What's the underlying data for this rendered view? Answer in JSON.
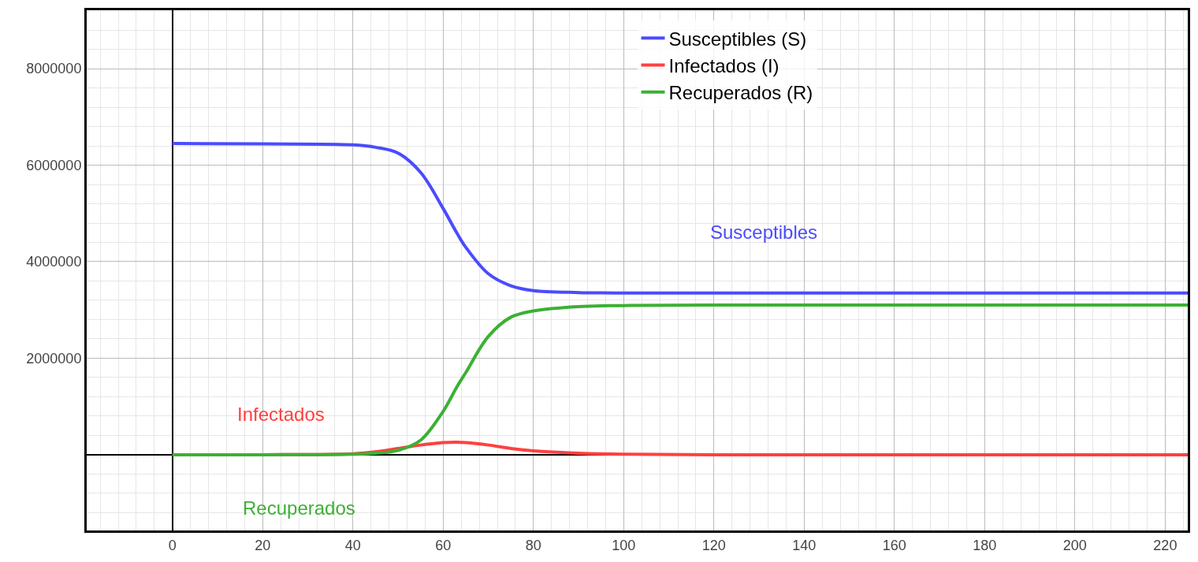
{
  "chart_data": {
    "type": "line",
    "x": [
      0,
      20,
      40,
      45,
      50,
      55,
      60,
      63,
      65,
      70,
      75,
      80,
      90,
      100,
      120,
      225
    ],
    "series": [
      {
        "name": "Susceptibles (S)",
        "color": "#4b4bff",
        "values": [
          6450000,
          6440000,
          6420000,
          6370000,
          6250000,
          5850000,
          5100000,
          4600000,
          4300000,
          3750000,
          3500000,
          3400000,
          3360000,
          3350000,
          3350000,
          3350000
        ]
      },
      {
        "name": "Infectados (I)",
        "color": "#ff4040",
        "values": [
          0,
          0,
          20000,
          60000,
          130000,
          200000,
          250000,
          260000,
          250000,
          200000,
          130000,
          80000,
          30000,
          10000,
          0,
          0
        ]
      },
      {
        "name": "Recuperados (R)",
        "color": "#3cb034",
        "values": [
          0,
          0,
          10000,
          30000,
          90000,
          300000,
          900000,
          1400000,
          1700000,
          2450000,
          2850000,
          2980000,
          3070000,
          3090000,
          3100000,
          3100000
        ]
      }
    ],
    "annotations": [
      "Susceptibles",
      "Infectados",
      "Recuperados"
    ],
    "xlim": [
      -19,
      225
    ],
    "ylim": [
      -1570000,
      9210000
    ],
    "xticks": [
      0,
      20,
      40,
      60,
      80,
      100,
      120,
      140,
      160,
      180,
      200,
      220
    ],
    "yticks": [
      2000000,
      4000000,
      6000000,
      8000000
    ],
    "grid": true,
    "legend": "top",
    "line_style": "solid",
    "marker": "none"
  }
}
